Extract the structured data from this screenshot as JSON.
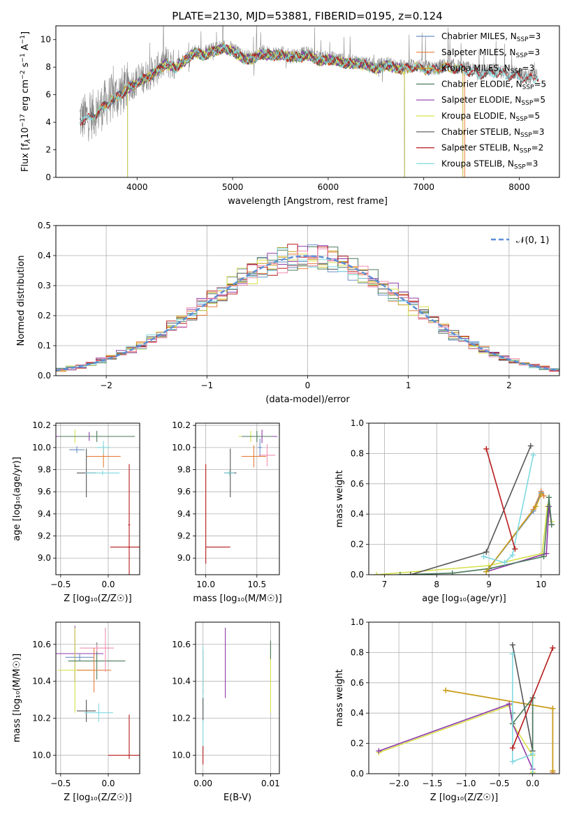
{
  "page": {
    "background": "#ffffff"
  },
  "colors": {
    "Chabrier MILES": "#6b8fc4",
    "Salpeter MILES": "#e67e3a",
    "Kroupa MILES": "#c7a018",
    "Chabrier ELODIE": "#4a7a5a",
    "Salpeter ELODIE": "#8e3aa8",
    "Kroupa ELODIE": "#d6e04a",
    "Chabrier STELIB": "#555555",
    "Salpeter STELIB": "#b81c1c",
    "Kroupa STELIB": "#7fd9e0",
    "normal": "#5b8fd6",
    "data": "#888888",
    "pink": "#f08fb0",
    "grid": "#b0b0b0"
  },
  "chart_data": [
    {
      "id": "spectrum",
      "type": "line",
      "title": "PLATE=2130, MJD=53881, FIBERID=0195, z=0.124",
      "xlabel": "wavelength [Angstrom, rest frame]",
      "ylabel_parts": [
        "Flux [f",
        "λ",
        "10",
        "−17",
        " erg cm",
        "−2",
        " s",
        "−1",
        " A",
        "−1",
        "]"
      ],
      "xlim": [
        3150,
        8420
      ],
      "ylim": [
        0,
        11
      ],
      "xticks": [
        4000,
        5000,
        6000,
        7000,
        8000
      ],
      "yticks": [
        0,
        2,
        4,
        6,
        8,
        10
      ],
      "grid": false,
      "legend_position": "top-right",
      "legend": [
        {
          "main": "Chabrier MILES, N",
          "sub": "SSP",
          "tail": "=3",
          "model": "Chabrier MILES"
        },
        {
          "main": "Salpeter MILES, N",
          "sub": "SSP",
          "tail": "=3",
          "model": "Salpeter MILES"
        },
        {
          "main": "Kroupa MILES, N",
          "sub": "SSP",
          "tail": "=3",
          "model": "Kroupa MILES"
        },
        {
          "main": "Chabrier ELODIE, N",
          "sub": "SSP",
          "tail": "=5",
          "model": "Chabrier ELODIE"
        },
        {
          "main": "Salpeter ELODIE, N",
          "sub": "SSP",
          "tail": "=5",
          "model": "Salpeter ELODIE"
        },
        {
          "main": "Kroupa ELODIE, N",
          "sub": "SSP",
          "tail": "=5",
          "model": "Kroupa ELODIE"
        },
        {
          "main": "Chabrier STELIB, N",
          "sub": "SSP",
          "tail": "=3",
          "model": "Chabrier STELIB"
        },
        {
          "main": "Salpeter STELIB, N",
          "sub": "SSP",
          "tail": "=2",
          "model": "Salpeter STELIB"
        },
        {
          "main": "Kroupa STELIB, N",
          "sub": "SSP",
          "tail": "=3",
          "model": "Kroupa STELIB"
        }
      ],
      "continuum": {
        "x": [
          3400,
          3500,
          3600,
          3700,
          3800,
          3900,
          4000,
          4100,
          4200,
          4300,
          4400,
          4500,
          4600,
          4700,
          4800,
          4900,
          5000,
          5100,
          5200,
          5300,
          5400,
          5500,
          5600,
          5700,
          5800,
          5900,
          6000,
          6100,
          6200,
          6300,
          6400,
          6500,
          6600,
          6700,
          6800,
          6900,
          7000,
          7100,
          7200,
          7300,
          7400,
          7500,
          7600,
          7700,
          7800,
          7900,
          8000,
          8100,
          8200
        ],
        "y": [
          4.3,
          4.4,
          4.9,
          5.6,
          6.0,
          6.6,
          7.0,
          7.4,
          7.8,
          8.4,
          8.1,
          8.6,
          9.2,
          9.0,
          9.3,
          9.5,
          9.3,
          8.8,
          8.7,
          9.1,
          9.0,
          9.0,
          8.9,
          8.9,
          9.0,
          8.6,
          8.7,
          8.6,
          8.4,
          8.4,
          8.3,
          8.0,
          8.3,
          8.1,
          8.0,
          8.2,
          8.0,
          7.9,
          8.1,
          8.1,
          8.0,
          7.8,
          7.6,
          7.8,
          7.7,
          7.6,
          7.5,
          7.3,
          7.4
        ]
      },
      "model_xrange": {
        "Chabrier MILES": [
          3540,
          7400
        ],
        "Salpeter MILES": [
          3540,
          7430
        ],
        "Kroupa MILES": [
          3540,
          7410
        ],
        "Chabrier ELODIE": [
          3900,
          6800
        ],
        "Salpeter ELODIE": [
          3900,
          6800
        ],
        "Kroupa ELODIE": [
          3900,
          6800
        ],
        "Chabrier STELIB": [
          3400,
          8200
        ],
        "Salpeter STELIB": [
          3400,
          8200
        ],
        "Kroupa STELIB": [
          3400,
          8200
        ]
      }
    },
    {
      "id": "residuals",
      "type": "step",
      "xlabel": "(data-model)/error",
      "ylabel": "Normed distribution",
      "xlim": [
        -2.5,
        2.5
      ],
      "ylim": [
        0,
        0.5
      ],
      "xticks": [
        -2,
        -1,
        0,
        1,
        2
      ],
      "xtick_labels": [
        "−2",
        "−1",
        "0",
        "1",
        "2"
      ],
      "yticks": [
        0.0,
        0.1,
        0.2,
        0.3,
        0.4,
        0.5
      ],
      "ytick_labels": [
        "0.0",
        "0.1",
        "0.2",
        "0.3",
        "0.4",
        "0.5"
      ],
      "grid": true,
      "legend_position": "top-right",
      "legend": [
        {
          "label": "𝒩(0, 1)",
          "style": "dashed"
        }
      ],
      "bin_width": 0.1
    },
    {
      "id": "age-Z",
      "type": "errorbar",
      "xlabel": "Z [log₁₀(Z/Z☉)]",
      "ylabel": "age  [log₁₀(age/yr)]",
      "xlim": [
        -0.55,
        0.33
      ],
      "ylim": [
        8.85,
        10.22
      ],
      "xticks": [
        -0.5,
        0.0
      ],
      "xtick_labels": [
        "−0.5",
        "0.0"
      ],
      "yticks": [
        9.0,
        9.2,
        9.4,
        9.6,
        9.8,
        10.0,
        10.2
      ],
      "ytick_labels": [
        "9.0",
        "9.2",
        "9.4",
        "9.6",
        "9.8",
        "10.0",
        "10.2"
      ],
      "grid": true,
      "points": [
        {
          "model": "Kroupa ELODIE",
          "x": -0.35,
          "xerr": 0.2,
          "y": 10.1,
          "yerr": 0.06
        },
        {
          "model": "Salpeter ELODIE",
          "x": -0.2,
          "xerr": 0.35,
          "y": 10.1,
          "yerr": 0.04
        },
        {
          "model": "Chabrier ELODIE",
          "x": -0.12,
          "xerr": 0.4,
          "y": 10.1,
          "yerr": 0.05
        },
        {
          "model": "Chabrier MILES",
          "x": -0.33,
          "xerr": 0.08,
          "y": 9.98,
          "yerr": 0.03
        },
        {
          "model": "Salpeter MILES",
          "x": -0.05,
          "xerr": 0.18,
          "y": 9.92,
          "yerr": 0.1
        },
        {
          "model": "Kroupa STELIB",
          "x": -0.05,
          "xerr": 0.07,
          "y": 10.0,
          "yerr": 0.06
        },
        {
          "model": "Chabrier STELIB",
          "x": -0.23,
          "xerr": 0.1,
          "y": 9.77,
          "yerr": 0.22
        },
        {
          "model": "Kroupa STELIB",
          "x": -0.06,
          "xerr": 0.18,
          "y": 9.77,
          "yerr": 0.02
        },
        {
          "model": "Salpeter STELIB",
          "x": 0.22,
          "xerr": 0.2,
          "y": 9.1,
          "yerr": 0.01
        },
        {
          "model": "Salpeter STELIB",
          "x": 0.22,
          "xerr": 0.01,
          "y": 9.3,
          "yerr": 0.55
        }
      ]
    },
    {
      "id": "age-mass",
      "type": "errorbar",
      "xlabel": "mass [log₁₀(M/M☉)]",
      "ylabel": "",
      "xlim": [
        9.9,
        10.72
      ],
      "ylim": [
        8.85,
        10.22
      ],
      "xticks": [
        10.0,
        10.5
      ],
      "xtick_labels": [
        "10.0",
        "10.5"
      ],
      "yticks": [
        9.0,
        9.2,
        9.4,
        9.6,
        9.8,
        10.0,
        10.2
      ],
      "ytick_labels": [
        "9.0",
        "9.2",
        "9.4",
        "9.6",
        "9.8",
        "10.0",
        "10.2"
      ],
      "grid": true,
      "points": [
        {
          "model": "Kroupa ELODIE",
          "x": 10.44,
          "xerr": 0.12,
          "y": 10.1,
          "yerr": 0.05
        },
        {
          "model": "Salpeter ELODIE",
          "x": 10.55,
          "xerr": 0.15,
          "y": 10.1,
          "yerr": 0.06
        },
        {
          "model": "Chabrier ELODIE",
          "x": 10.5,
          "xerr": 0.15,
          "y": 10.1,
          "yerr": 0.05
        },
        {
          "model": "Salpeter MILES",
          "x": 10.47,
          "xerr": 0.12,
          "y": 9.92,
          "yerr": 0.1
        },
        {
          "model": "Chabrier MILES",
          "x": 10.53,
          "xerr": 0.02,
          "y": 10.0,
          "yerr": 0.08
        },
        {
          "model": "pink",
          "x": 10.6,
          "xerr": 0.08,
          "y": 9.93,
          "yerr": 0.1
        },
        {
          "model": "Chabrier STELIB",
          "x": 10.24,
          "xerr": 0.06,
          "y": 9.77,
          "yerr": 0.22
        },
        {
          "model": "Kroupa STELIB",
          "x": 10.23,
          "xerr": 0.05,
          "y": 9.77,
          "yerr": 0.02
        },
        {
          "model": "Salpeter STELIB",
          "x": 10.0,
          "xerr": 0.0,
          "y": 9.4,
          "yerr": 0.45
        },
        {
          "model": "Salpeter STELIB",
          "x": 10.12,
          "xerr": 0.12,
          "y": 9.1,
          "yerr": 0.0
        }
      ]
    },
    {
      "id": "mass-weight-age",
      "type": "line",
      "xlabel": "age  [log₁₀(age/yr)]",
      "ylabel": "mass weight",
      "xlim": [
        6.7,
        10.35
      ],
      "ylim": [
        0,
        1.0
      ],
      "xticks": [
        7,
        8,
        9,
        10
      ],
      "xtick_labels": [
        "7",
        "8",
        "9",
        "10"
      ],
      "yticks": [
        0.0,
        0.2,
        0.4,
        0.6,
        0.8,
        1.0
      ],
      "ytick_labels": [
        "0.0",
        "0.2",
        "0.4",
        "0.6",
        "0.8",
        "1.0"
      ],
      "grid": true,
      "series": [
        {
          "model": "Kroupa ELODIE",
          "x": [
            6.85,
            9.0,
            10.02,
            10.12,
            10.2
          ],
          "y": [
            0.0,
            0.06,
            0.14,
            0.45,
            0.35
          ]
        },
        {
          "model": "Salpeter ELODIE",
          "x": [
            8.95,
            10.1,
            10.15,
            10.2
          ],
          "y": [
            0.02,
            0.14,
            0.45,
            0.33
          ]
        },
        {
          "model": "Chabrier ELODIE",
          "x": [
            7.3,
            8.3,
            9.0,
            10.05,
            10.15,
            10.2
          ],
          "y": [
            0.0,
            0.01,
            0.04,
            0.12,
            0.51,
            0.33
          ]
        },
        {
          "model": "Salpeter MILES",
          "x": [
            8.95,
            9.85,
            10.0,
            10.05
          ],
          "y": [
            0.02,
            0.43,
            0.55,
            0.52
          ]
        },
        {
          "model": "Chabrier MILES",
          "x": [
            8.95,
            9.85,
            10.0
          ],
          "y": [
            0.02,
            0.42,
            0.54
          ]
        },
        {
          "model": "Kroupa MILES",
          "x": [
            8.95,
            9.9,
            10.0
          ],
          "y": [
            0.02,
            0.45,
            0.53
          ]
        },
        {
          "model": "Chabrier STELIB",
          "x": [
            7.5,
            8.95,
            9.8
          ],
          "y": [
            0.0,
            0.15,
            0.85
          ]
        },
        {
          "model": "Kroupa STELIB",
          "x": [
            8.9,
            9.3,
            9.45,
            9.85
          ],
          "y": [
            0.12,
            0.08,
            0.13,
            0.79
          ]
        },
        {
          "model": "Salpeter STELIB",
          "x": [
            8.95,
            9.5
          ],
          "y": [
            0.83,
            0.17
          ]
        }
      ]
    },
    {
      "id": "mass-Z",
      "type": "errorbar",
      "xlabel": "Z [log₁₀(Z/Z☉)]",
      "ylabel": "mass [log₁₀(M/M☉)]",
      "xlim": [
        -0.55,
        0.33
      ],
      "ylim": [
        9.9,
        10.72
      ],
      "xticks": [
        -0.5,
        0.0
      ],
      "xtick_labels": [
        "−0.5",
        "0.0"
      ],
      "yticks": [
        10.0,
        10.2,
        10.4,
        10.6
      ],
      "ytick_labels": [
        "10.0",
        "10.2",
        "10.4",
        "10.6"
      ],
      "grid": true,
      "points": [
        {
          "model": "Salpeter ELODIE",
          "x": -0.35,
          "xerr": 0.3,
          "y": 10.55,
          "yerr": 0.15
        },
        {
          "model": "Kroupa ELODIE",
          "x": -0.35,
          "xerr": 0.18,
          "y": 10.46,
          "yerr": 0.23
        },
        {
          "model": "Chabrier MILES",
          "x": -0.3,
          "xerr": 0.15,
          "y": 10.53,
          "yerr": 0.02
        },
        {
          "model": "Chabrier ELODIE",
          "x": -0.12,
          "xerr": 0.3,
          "y": 10.51,
          "yerr": 0.1
        },
        {
          "model": "pink",
          "x": -0.12,
          "xerr": 0.18,
          "y": 10.58,
          "yerr": 0.02
        },
        {
          "model": "Salpeter MILES",
          "x": -0.15,
          "xerr": 0.18,
          "y": 10.46,
          "yerr": 0.12
        },
        {
          "model": "pink",
          "x": -0.03,
          "xerr": 0.0,
          "y": 10.57,
          "yerr": 0.12
        },
        {
          "model": "Chabrier STELIB",
          "x": -0.23,
          "xerr": 0.1,
          "y": 10.24,
          "yerr": 0.06
        },
        {
          "model": "Kroupa STELIB",
          "x": -0.1,
          "xerr": 0.15,
          "y": 10.23,
          "yerr": 0.05
        },
        {
          "model": "Salpeter STELIB",
          "x": 0.2,
          "xerr": 0.2,
          "y": 10.0,
          "yerr": 0.0
        },
        {
          "model": "Salpeter STELIB",
          "x": 0.22,
          "xerr": 0.0,
          "y": 10.1,
          "yerr": 0.12
        }
      ]
    },
    {
      "id": "mass-EBV",
      "type": "errorbar",
      "xlabel": "E(B-V)",
      "ylabel": "",
      "xlim": [
        -0.0011,
        0.0113
      ],
      "ylim": [
        9.9,
        10.72
      ],
      "xticks": [
        0.0,
        0.01
      ],
      "xtick_labels": [
        "0.00",
        "0.01"
      ],
      "yticks": [
        10.0,
        10.2,
        10.4,
        10.6
      ],
      "ytick_labels": [
        "10.0",
        "10.2",
        "10.4",
        "10.6"
      ],
      "grid": true,
      "points": [
        {
          "model": "Salpeter ELODIE",
          "x": 0.0033,
          "xerr": 0.0,
          "y": 10.5,
          "yerr": 0.19
        },
        {
          "model": "Kroupa ELODIE",
          "x": 0.01,
          "xerr": 0.0,
          "y": 10.4,
          "yerr": 0.17
        },
        {
          "model": "Chabrier ELODIE",
          "x": 0.01,
          "xerr": 0.0,
          "y": 10.57,
          "yerr": 0.05
        },
        {
          "model": "Salpeter MILES",
          "x": 0.0,
          "xerr": 0.0,
          "y": 10.45,
          "yerr": 0.12
        },
        {
          "model": "Kroupa STELIB",
          "x": 0.0,
          "xerr": 0.0,
          "y": 10.3,
          "yerr": 0.29
        },
        {
          "model": "Chabrier STELIB",
          "x": 0.0,
          "xerr": 0.0,
          "y": 10.25,
          "yerr": 0.06
        },
        {
          "model": "Salpeter STELIB",
          "x": 0.0,
          "xerr": 0.0,
          "y": 10.0,
          "yerr": 0.05
        }
      ]
    },
    {
      "id": "mass-weight-Z",
      "type": "line",
      "xlabel": "Z [log₁₀(Z/Z☉)]",
      "ylabel": "mass weight",
      "xlim": [
        -2.45,
        0.4
      ],
      "ylim": [
        0,
        1.0
      ],
      "xticks": [
        -2.0,
        -1.5,
        -1.0,
        -0.5,
        0.0
      ],
      "xtick_labels": [
        "−2.0",
        "−1.5",
        "−1.0",
        "−0.5",
        "0.0"
      ],
      "yticks": [
        0.0,
        0.2,
        0.4,
        0.6,
        0.8,
        1.0
      ],
      "ytick_labels": [
        "0.0",
        "0.2",
        "0.4",
        "0.6",
        "0.8",
        "1.0"
      ],
      "grid": true,
      "series": [
        {
          "model": "Kroupa ELODIE",
          "x": [
            -2.3,
            -0.35,
            -0.3,
            0.0,
            0.0
          ],
          "y": [
            0.14,
            0.45,
            0.33,
            0.12,
            0.01
          ]
        },
        {
          "model": "Salpeter ELODIE",
          "x": [
            -2.3,
            -0.35,
            -0.3,
            0.0
          ],
          "y": [
            0.15,
            0.46,
            0.33,
            0.03
          ]
        },
        {
          "model": "Salpeter MILES",
          "x": [
            -1.3,
            0.3,
            0.3
          ],
          "y": [
            0.55,
            0.43,
            0.01
          ]
        },
        {
          "model": "Kroupa MILES",
          "x": [
            -1.3,
            0.3,
            0.3
          ],
          "y": [
            0.55,
            0.43,
            0.02
          ]
        },
        {
          "model": "Chabrier STELIB",
          "x": [
            -0.3,
            0.0,
            0.0
          ],
          "y": [
            0.85,
            0.15,
            0.5
          ]
        },
        {
          "model": "Chabrier ELODIE",
          "x": [
            -0.3,
            -0.3,
            0.0,
            0.0
          ],
          "y": [
            0.4,
            0.33,
            0.5,
            0.0
          ]
        },
        {
          "model": "Kroupa STELIB",
          "x": [
            -0.3,
            -0.3,
            0.0,
            0.0
          ],
          "y": [
            0.79,
            0.08,
            0.13,
            0.0
          ]
        },
        {
          "model": "Salpeter STELIB",
          "x": [
            -0.3,
            0.3
          ],
          "y": [
            0.17,
            0.83
          ]
        }
      ]
    }
  ]
}
